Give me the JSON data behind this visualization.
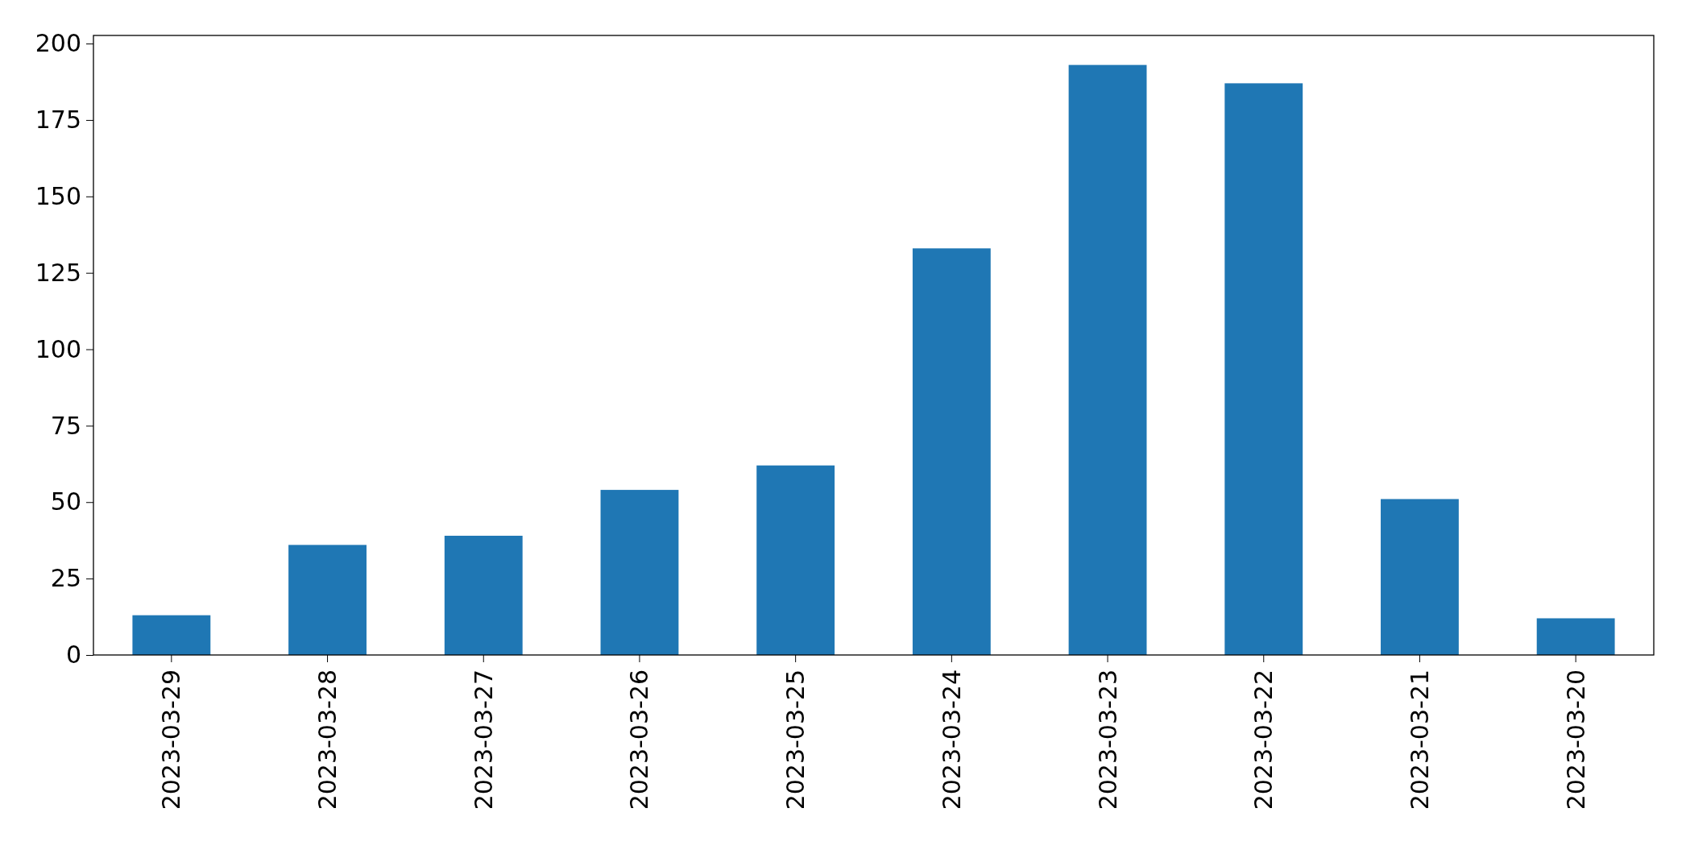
{
  "chart_data": {
    "type": "bar",
    "categories": [
      "2023-03-29",
      "2023-03-28",
      "2023-03-27",
      "2023-03-26",
      "2023-03-25",
      "2023-03-24",
      "2023-03-23",
      "2023-03-22",
      "2023-03-21",
      "2023-03-20"
    ],
    "values": [
      13,
      36,
      39,
      54,
      62,
      133,
      193,
      187,
      51,
      12
    ],
    "color": "#1f77b4",
    "ylim": [
      0,
      202.65
    ],
    "yticks": [
      0,
      25,
      50,
      75,
      100,
      125,
      150,
      175,
      200
    ],
    "grid": false
  }
}
